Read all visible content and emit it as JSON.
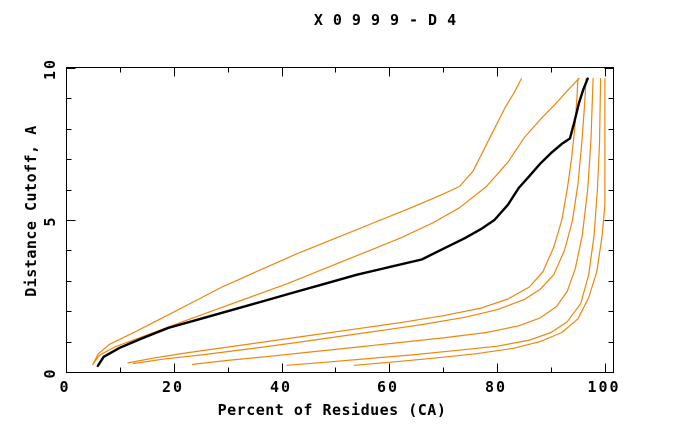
{
  "chart_data": {
    "type": "line",
    "title": "X0999-D4",
    "xlabel": "Percent of Residues (CA)",
    "ylabel": "Distance Cutoff, A",
    "xlim": [
      0,
      101.5
    ],
    "ylim": [
      0,
      10.03
    ],
    "x_ticks": {
      "major": [
        0,
        20,
        40,
        60,
        80,
        100
      ],
      "minor": [
        10,
        30,
        50,
        70,
        90
      ]
    },
    "y_ticks": {
      "major": [
        0,
        5,
        10
      ],
      "minor": [
        1,
        2,
        3,
        4,
        6,
        7,
        8,
        9
      ]
    },
    "grid": false,
    "legend": "none",
    "frame": "full box, inward ticks on all four sides",
    "axis_color": "#000000",
    "highlight_color": "#000000",
    "comparison_color": "#ED870E",
    "series": [
      {
        "name": "comparison-model-1",
        "color": "#ED870E",
        "width": 1.2,
        "points": [
          [
            5,
            0.25
          ],
          [
            6,
            0.6
          ],
          [
            8,
            0.9
          ],
          [
            12,
            1.25
          ],
          [
            17,
            1.7
          ],
          [
            23,
            2.25
          ],
          [
            29,
            2.8
          ],
          [
            36,
            3.35
          ],
          [
            43,
            3.9
          ],
          [
            50,
            4.4
          ],
          [
            57,
            4.9
          ],
          [
            64,
            5.4
          ],
          [
            70,
            5.85
          ],
          [
            73,
            6.1
          ],
          [
            75.5,
            6.6
          ],
          [
            77.5,
            7.3
          ],
          [
            79.5,
            8.0
          ],
          [
            81.5,
            8.7
          ],
          [
            83.2,
            9.2
          ],
          [
            84.5,
            9.65
          ]
        ]
      },
      {
        "name": "comparison-model-2",
        "color": "#ED870E",
        "width": 1.2,
        "points": [
          [
            5,
            0.25
          ],
          [
            6.2,
            0.55
          ],
          [
            9,
            0.82
          ],
          [
            14,
            1.15
          ],
          [
            20,
            1.55
          ],
          [
            27,
            2.0
          ],
          [
            34,
            2.45
          ],
          [
            41,
            2.9
          ],
          [
            48,
            3.4
          ],
          [
            55,
            3.9
          ],
          [
            62,
            4.4
          ],
          [
            68,
            4.9
          ],
          [
            73,
            5.4
          ],
          [
            78,
            6.1
          ],
          [
            82,
            6.9
          ],
          [
            85,
            7.7
          ],
          [
            88,
            8.3
          ],
          [
            91,
            8.85
          ],
          [
            93.3,
            9.3
          ],
          [
            95.2,
            9.65
          ]
        ]
      },
      {
        "name": "comparison-model-3",
        "color": "#ED870E",
        "width": 1.2,
        "points": [
          [
            11.5,
            0.3
          ],
          [
            16,
            0.45
          ],
          [
            22,
            0.62
          ],
          [
            30,
            0.82
          ],
          [
            38,
            1.02
          ],
          [
            46,
            1.22
          ],
          [
            54,
            1.42
          ],
          [
            62,
            1.62
          ],
          [
            70,
            1.85
          ],
          [
            77,
            2.1
          ],
          [
            82,
            2.4
          ],
          [
            86,
            2.8
          ],
          [
            88.5,
            3.3
          ],
          [
            90.5,
            4.1
          ],
          [
            92,
            5.0
          ],
          [
            93,
            6.0
          ],
          [
            93.8,
            7.0
          ],
          [
            94.4,
            8.0
          ],
          [
            94.8,
            9.0
          ],
          [
            95,
            9.65
          ]
        ]
      },
      {
        "name": "comparison-model-4",
        "color": "#ED870E",
        "width": 1.2,
        "points": [
          [
            12.5,
            0.28
          ],
          [
            18,
            0.42
          ],
          [
            26,
            0.58
          ],
          [
            34,
            0.76
          ],
          [
            42,
            0.95
          ],
          [
            50,
            1.15
          ],
          [
            58,
            1.35
          ],
          [
            66,
            1.56
          ],
          [
            74,
            1.8
          ],
          [
            80,
            2.05
          ],
          [
            85,
            2.38
          ],
          [
            88,
            2.72
          ],
          [
            90.5,
            3.2
          ],
          [
            92.5,
            4.0
          ],
          [
            94,
            5.0
          ],
          [
            95,
            6.2
          ],
          [
            95.7,
            7.5
          ],
          [
            96.2,
            8.7
          ],
          [
            96.5,
            9.65
          ]
        ]
      },
      {
        "name": "comparison-model-5",
        "color": "#ED870E",
        "width": 1.2,
        "points": [
          [
            23.5,
            0.25
          ],
          [
            30,
            0.38
          ],
          [
            38,
            0.52
          ],
          [
            46,
            0.67
          ],
          [
            54,
            0.82
          ],
          [
            62,
            0.97
          ],
          [
            70,
            1.12
          ],
          [
            78,
            1.3
          ],
          [
            84,
            1.52
          ],
          [
            88,
            1.78
          ],
          [
            91,
            2.15
          ],
          [
            93,
            2.65
          ],
          [
            94.5,
            3.4
          ],
          [
            95.8,
            4.5
          ],
          [
            96.8,
            6.0
          ],
          [
            97.4,
            7.6
          ],
          [
            97.8,
            9.65
          ]
        ]
      },
      {
        "name": "comparison-model-6",
        "color": "#ED870E",
        "width": 1.2,
        "points": [
          [
            41,
            0.22
          ],
          [
            48,
            0.32
          ],
          [
            56,
            0.44
          ],
          [
            64,
            0.56
          ],
          [
            72,
            0.7
          ],
          [
            80,
            0.85
          ],
          [
            86,
            1.05
          ],
          [
            90,
            1.3
          ],
          [
            93,
            1.65
          ],
          [
            95.5,
            2.25
          ],
          [
            97,
            3.2
          ],
          [
            98,
            4.5
          ],
          [
            98.6,
            6.0
          ],
          [
            99,
            7.5
          ],
          [
            99.2,
            9.65
          ]
        ]
      },
      {
        "name": "comparison-model-7",
        "color": "#ED870E",
        "width": 1.2,
        "points": [
          [
            53.5,
            0.22
          ],
          [
            60,
            0.32
          ],
          [
            68,
            0.45
          ],
          [
            76,
            0.6
          ],
          [
            83,
            0.78
          ],
          [
            88,
            1.0
          ],
          [
            92,
            1.3
          ],
          [
            95,
            1.75
          ],
          [
            97,
            2.45
          ],
          [
            98.5,
            3.3
          ],
          [
            99.5,
            4.5
          ],
          [
            100,
            5.5
          ],
          [
            100,
            9.65
          ]
        ]
      },
      {
        "name": "highlighted-model-X0999-D4",
        "color": "#000000",
        "width": 2.4,
        "points": [
          [
            5.9,
            0.2
          ],
          [
            7,
            0.5
          ],
          [
            10,
            0.8
          ],
          [
            14,
            1.1
          ],
          [
            19,
            1.45
          ],
          [
            25,
            1.75
          ],
          [
            31,
            2.05
          ],
          [
            36,
            2.3
          ],
          [
            42,
            2.6
          ],
          [
            48,
            2.9
          ],
          [
            54,
            3.2
          ],
          [
            60,
            3.45
          ],
          [
            66,
            3.7
          ],
          [
            70,
            4.05
          ],
          [
            74,
            4.4
          ],
          [
            77,
            4.7
          ],
          [
            79.5,
            5.0
          ],
          [
            82,
            5.5
          ],
          [
            84,
            6.05
          ],
          [
            86,
            6.45
          ],
          [
            88,
            6.85
          ],
          [
            90,
            7.2
          ],
          [
            92,
            7.5
          ],
          [
            93.5,
            7.68
          ],
          [
            94.3,
            8.2
          ],
          [
            95.2,
            8.85
          ],
          [
            96,
            9.3
          ],
          [
            96.8,
            9.65
          ]
        ]
      }
    ]
  }
}
